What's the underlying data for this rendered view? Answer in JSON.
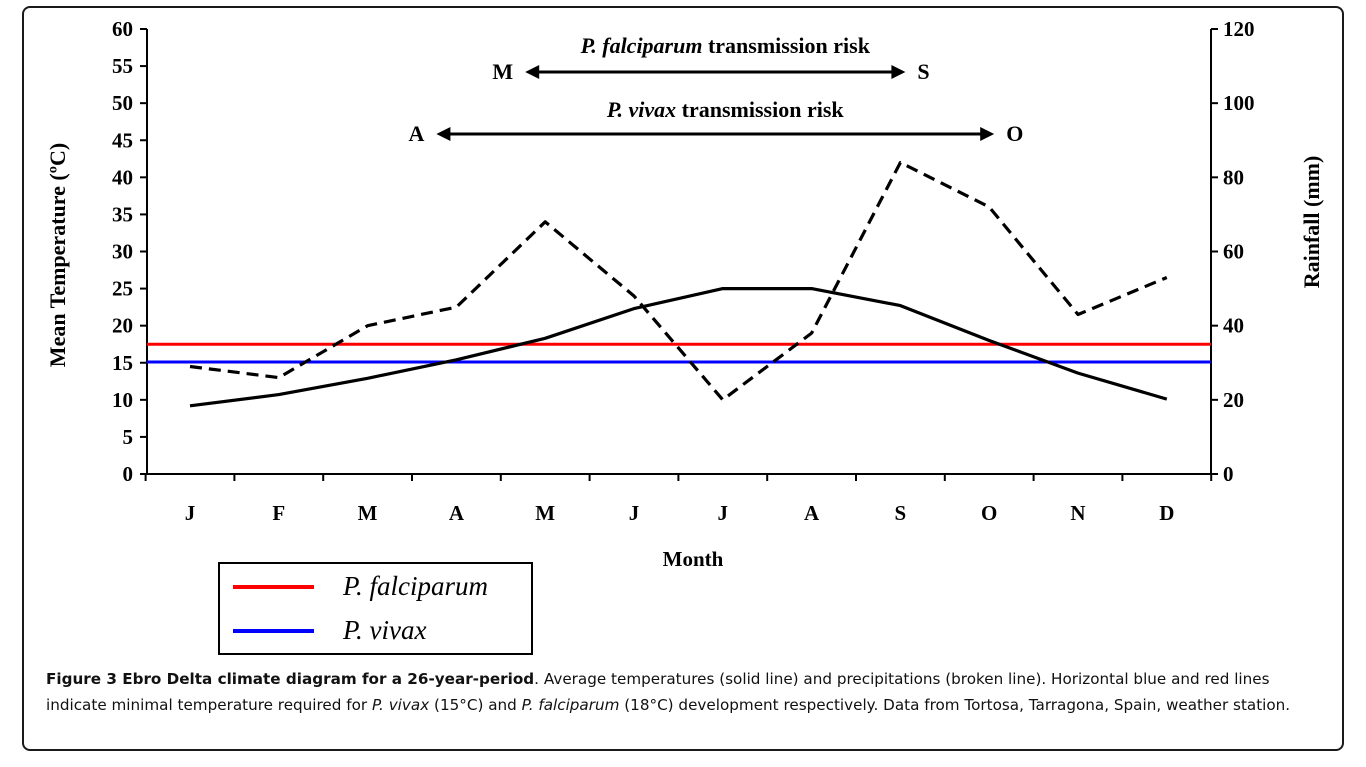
{
  "chart_data": {
    "type": "line",
    "categories": [
      "J",
      "F",
      "M",
      "A",
      "M",
      "J",
      "J",
      "A",
      "S",
      "O",
      "N",
      "D"
    ],
    "xlabel": "Month",
    "y_left": {
      "label": "Mean Temperature (ºC)",
      "range": [
        0,
        60
      ],
      "ticks": [
        "0",
        "5",
        "10",
        "15",
        "20",
        "25",
        "30",
        "35",
        "40",
        "45",
        "50",
        "55",
        "60"
      ]
    },
    "y_right": {
      "label": "Rainfall (mm)",
      "range": [
        0,
        120
      ],
      "ticks": [
        "0",
        "20",
        "40",
        "60",
        "80",
        "100",
        "120"
      ]
    },
    "series": [
      {
        "axis": "left",
        "style": "solid",
        "color": "#000000",
        "values": [
          9.2,
          10.7,
          12.9,
          15.4,
          18.3,
          22.3,
          25.0,
          25.0,
          22.7,
          18.0,
          13.6,
          10.1
        ]
      },
      {
        "axis": "right",
        "style": "dashed",
        "color": "#000000",
        "values": [
          29,
          26,
          40,
          45,
          68,
          48,
          20,
          38,
          84,
          72,
          43,
          53
        ]
      }
    ],
    "thresholds": [
      {
        "name": "P. falciparum",
        "value": 17.5,
        "color": "#ff0000"
      },
      {
        "name": "P. vivax",
        "value": 15.1,
        "color": "#0000ff"
      }
    ],
    "annotations": [
      {
        "title_italic": "P. falciparum",
        "title_rest": " transmission risk",
        "from_label": "M",
        "to_label": "S",
        "from_index": 4,
        "to_index": 8
      },
      {
        "title_italic": "P. vivax",
        "title_rest": " transmission risk",
        "from_label": "A",
        "to_label": "O",
        "from_index": 3,
        "to_index": 9
      }
    ],
    "legend": {
      "placement": "bottom-left",
      "entries": [
        {
          "label": "P. falciparum",
          "color": "#ff0000"
        },
        {
          "label": "P. vivax",
          "color": "#0000ff"
        }
      ]
    },
    "grid": false
  },
  "caption": {
    "lead": "Figure 3 Ebro Delta climate diagram for a 26-year-period",
    "p1": ". Average temperatures (solid line) and precipitations (broken line). Horizontal blue and red lines indicate minimal temperature required for ",
    "i1": "P. vivax",
    "p2": " (15°C) and ",
    "i2": "P. falciparum",
    "p3": " (18°C) development respectively. Data from Tortosa, Tarragona, Spain, weather station."
  }
}
